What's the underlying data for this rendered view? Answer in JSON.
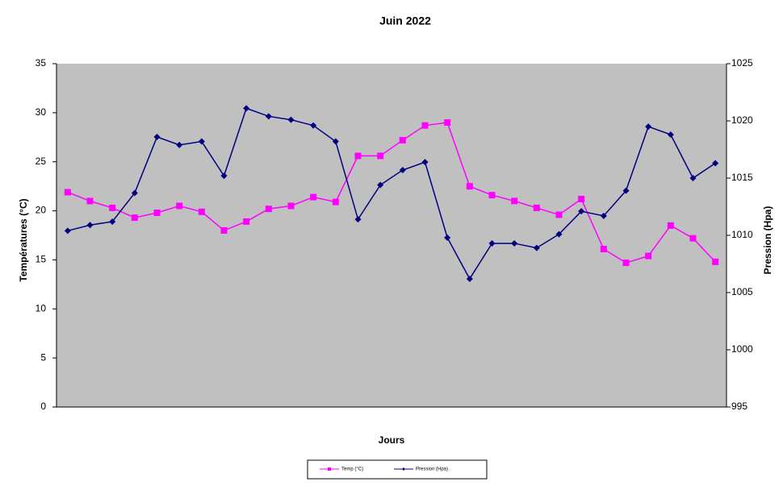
{
  "chart_data": {
    "type": "line",
    "title": "Juin 2022",
    "x_label": "Jours",
    "y_label": "Températures (°C)",
    "y2_label": "Pression (Hpa)",
    "categories": [
      null,
      null,
      null,
      null,
      null,
      null,
      null,
      null,
      null,
      null,
      null,
      null,
      null,
      null,
      null,
      null,
      null,
      null,
      null,
      null,
      null,
      null,
      null,
      null,
      null,
      null,
      null,
      null,
      null,
      null
    ],
    "series": [
      {
        "name": "Temp (°C)",
        "color": "#ff00ff",
        "marker": "square",
        "values": [
          21.9,
          21.0,
          20.3,
          19.3,
          19.8,
          20.5,
          19.9,
          18.0,
          18.9,
          20.2,
          20.5,
          21.4,
          20.9,
          25.6,
          25.6,
          27.2,
          28.7,
          29.0,
          22.5,
          21.6,
          21.0,
          20.3,
          19.6,
          21.2,
          16.1,
          14.7,
          15.4,
          18.5,
          17.2,
          14.8
        ]
      },
      {
        "name": "Pression (Hpa)",
        "color": "#000080",
        "marker": "diamond",
        "axis": "y2",
        "values": [
          1010.4,
          1010.9,
          1011.2,
          1013.7,
          1018.6,
          1017.9,
          1018.2,
          1015.2,
          1021.1,
          1020.4,
          1020.1,
          1019.6,
          1018.2,
          1011.4,
          1014.4,
          1015.7,
          1016.4,
          1009.8,
          1006.2,
          1009.3,
          1009.3,
          1008.9,
          1010.1,
          1012.1,
          1011.7,
          1013.9,
          1019.5,
          1018.8,
          1015.0,
          1016.3
        ]
      }
    ],
    "ylim": [
      0,
      35
    ],
    "yticks": [
      0,
      5,
      10,
      15,
      20,
      25,
      30,
      35
    ],
    "y2lim": [
      995,
      1025
    ],
    "y2ticks": [
      995,
      1000,
      1005,
      1010,
      1015,
      1020,
      1025
    ],
    "plot_background": "#c0c0c0",
    "legend": "bottom"
  }
}
